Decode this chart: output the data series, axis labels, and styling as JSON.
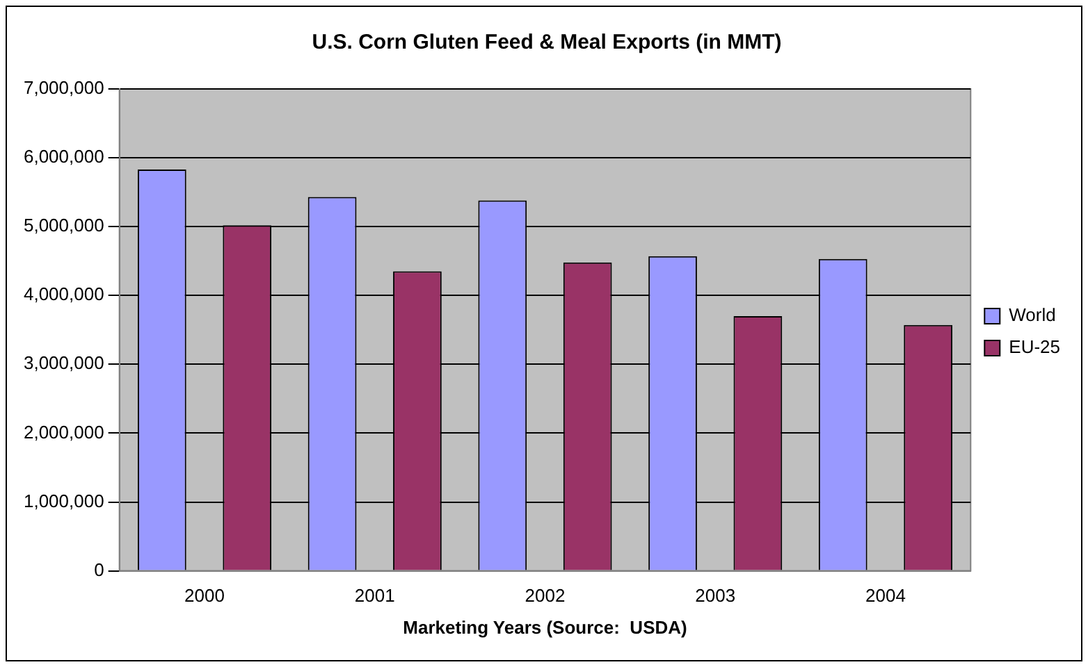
{
  "chart_data": {
    "type": "bar",
    "title": "U.S. Corn Gluten Feed & Meal Exports (in MMT)",
    "xlabel": "Marketing Years (Source:  USDA)",
    "categories": [
      "2000",
      "2001",
      "2002",
      "2003",
      "2004"
    ],
    "series": [
      {
        "name": "World",
        "color": "#9999ff",
        "values": [
          5830000,
          5430000,
          5380000,
          4570000,
          4530000
        ]
      },
      {
        "name": "EU-25",
        "color": "#993366",
        "values": [
          5020000,
          4350000,
          4480000,
          3700000,
          3570000
        ]
      }
    ],
    "ylim": [
      0,
      7000000
    ],
    "yticks": [
      {
        "value": 0,
        "label": "0"
      },
      {
        "value": 1000000,
        "label": "1,000,000"
      },
      {
        "value": 2000000,
        "label": "2,000,000"
      },
      {
        "value": 3000000,
        "label": "3,000,000"
      },
      {
        "value": 4000000,
        "label": "4,000,000"
      },
      {
        "value": 5000000,
        "label": "5,000,000"
      },
      {
        "value": 6000000,
        "label": "6,000,000"
      },
      {
        "value": 7000000,
        "label": "7,000,000"
      }
    ],
    "grid": "y",
    "legend": "right"
  }
}
